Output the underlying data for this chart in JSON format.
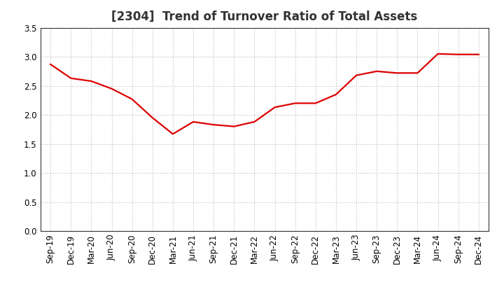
{
  "title": "[2304]  Trend of Turnover Ratio of Total Assets",
  "labels": [
    "Sep-19",
    "Dec-19",
    "Mar-20",
    "Jun-20",
    "Sep-20",
    "Dec-20",
    "Mar-21",
    "Jun-21",
    "Sep-21",
    "Dec-21",
    "Mar-22",
    "Jun-22",
    "Sep-22",
    "Dec-22",
    "Mar-23",
    "Jun-23",
    "Sep-23",
    "Dec-23",
    "Mar-24",
    "Jun-24",
    "Sep-24",
    "Dec-24"
  ],
  "values": [
    2.87,
    2.63,
    2.58,
    2.45,
    2.27,
    1.95,
    1.67,
    1.88,
    1.83,
    1.8,
    1.88,
    2.13,
    2.2,
    2.2,
    2.35,
    2.68,
    2.75,
    2.72,
    2.72,
    3.05,
    3.04,
    3.04
  ],
  "line_color": "#dd0000",
  "line_width": 1.6,
  "ylim": [
    0.0,
    3.5
  ],
  "yticks": [
    0.0,
    0.5,
    1.0,
    1.5,
    2.0,
    2.5,
    3.0,
    3.5
  ],
  "grid_color": "#bbbbbb",
  "background_color": "#ffffff",
  "title_fontsize": 12,
  "tick_fontsize": 8.5
}
